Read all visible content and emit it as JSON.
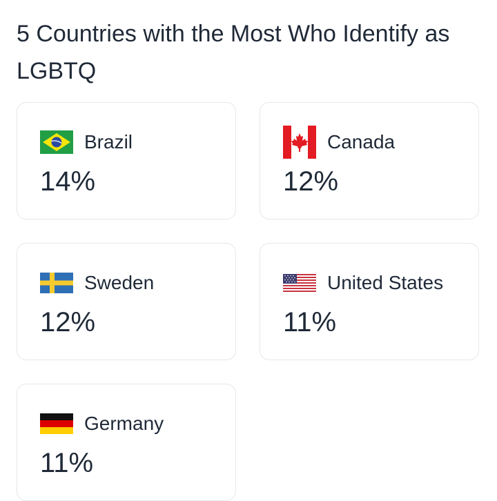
{
  "page": {
    "title": "5 Countries with the Most Who Identify as LGBTQ"
  },
  "cards": [
    {
      "country": "Brazil",
      "value": "14%",
      "flag_icon": "brazil-flag-icon"
    },
    {
      "country": "Canada",
      "value": "12%",
      "flag_icon": "canada-flag-icon"
    },
    {
      "country": "Sweden",
      "value": "12%",
      "flag_icon": "sweden-flag-icon"
    },
    {
      "country": "United States",
      "value": "11%",
      "flag_icon": "usa-flag-icon"
    },
    {
      "country": "Germany",
      "value": "11%",
      "flag_icon": "germany-flag-icon"
    }
  ]
}
